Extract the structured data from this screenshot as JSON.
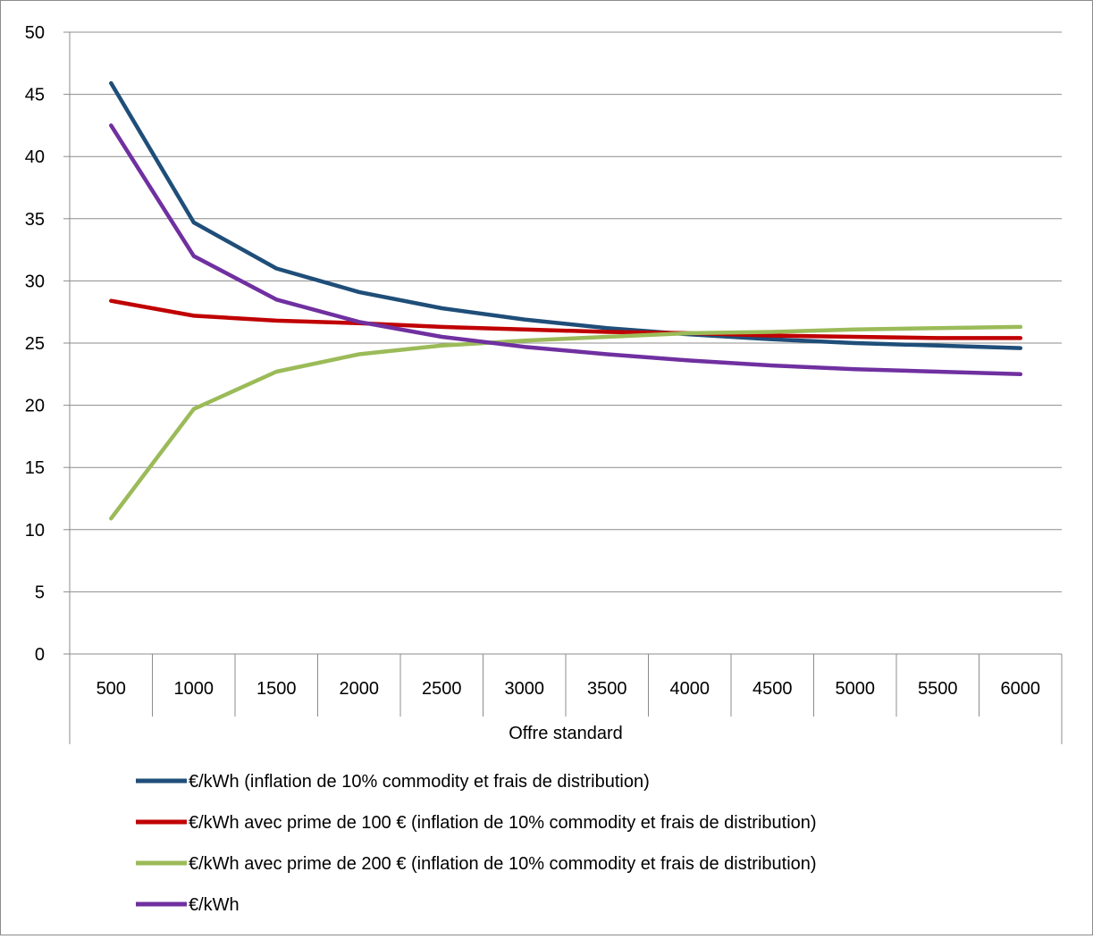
{
  "chart_data": {
    "type": "line",
    "title": "",
    "ylabel": "",
    "ylim": [
      0,
      50
    ],
    "y_ticks": [
      "0",
      "5",
      "10",
      "15",
      "20",
      "25",
      "30",
      "35",
      "40",
      "45",
      "50"
    ],
    "categories": [
      "500",
      "1000",
      "1500",
      "2000",
      "2500",
      "3000",
      "3500",
      "4000",
      "4500",
      "5000",
      "5500",
      "6000"
    ],
    "category_group": "Offre standard",
    "grid": "horizontal",
    "legend_position": "bottom",
    "series": [
      {
        "name": "€/kWh (inflation de 10% commodity et frais de distribution)",
        "color": "#1f4e79",
        "values": [
          45.9,
          34.7,
          31.0,
          29.1,
          27.8,
          26.9,
          26.2,
          25.7,
          25.3,
          25.0,
          24.8,
          24.6
        ]
      },
      {
        "name": "€/kWh avec prime de 100 € (inflation de 10% commodity et frais de distribution)",
        "color": "#c00000",
        "values": [
          28.4,
          27.2,
          26.8,
          26.6,
          26.3,
          26.1,
          25.9,
          25.8,
          25.6,
          25.5,
          25.4,
          25.4
        ]
      },
      {
        "name": "€/kWh avec prime de 200 € (inflation de 10% commodity et frais de distribution)",
        "color": "#9bbb59",
        "values": [
          10.9,
          19.7,
          22.7,
          24.1,
          24.8,
          25.2,
          25.5,
          25.8,
          25.9,
          26.1,
          26.2,
          26.3
        ]
      },
      {
        "name": "€/kWh",
        "color": "#7030a0",
        "values": [
          42.5,
          32.0,
          28.5,
          26.7,
          25.5,
          24.7,
          24.1,
          23.6,
          23.2,
          22.9,
          22.7,
          22.5
        ]
      }
    ]
  }
}
